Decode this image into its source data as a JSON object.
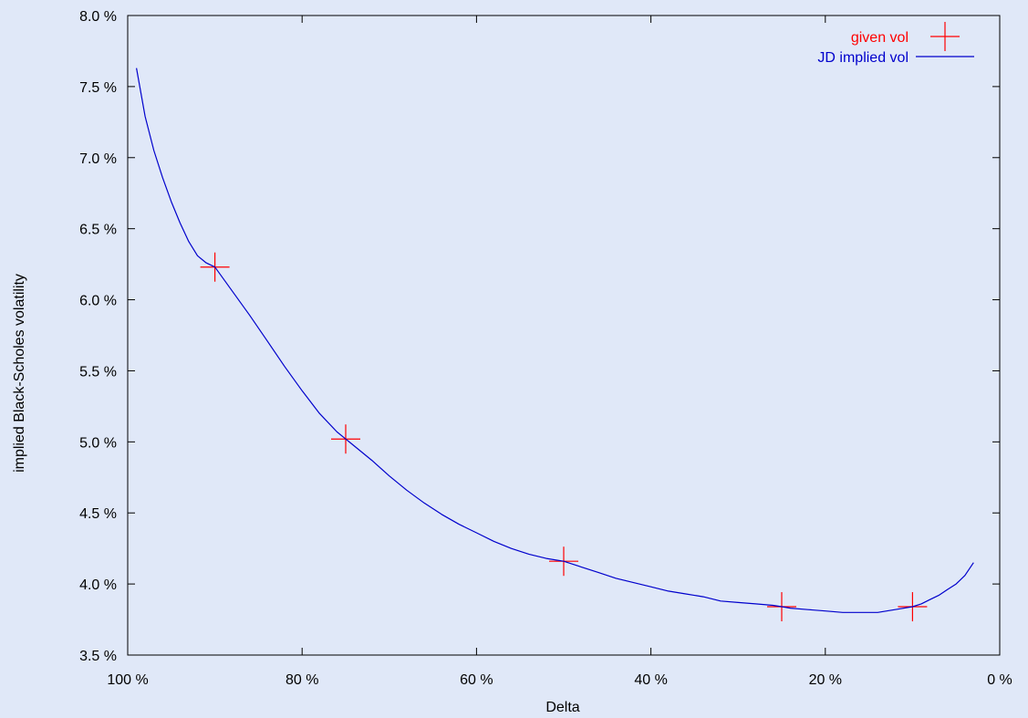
{
  "chart_data": {
    "type": "line",
    "xlabel": "Delta",
    "ylabel": "implied Black-Scholes volatility",
    "x_reversed": true,
    "xlim": [
      100,
      0
    ],
    "ylim": [
      3.5,
      8.0
    ],
    "x_ticks": [
      100,
      80,
      60,
      40,
      20,
      0
    ],
    "x_tick_labels": [
      "100 %",
      "80 %",
      "60 %",
      "40 %",
      "20 %",
      "0 %"
    ],
    "y_ticks": [
      3.5,
      4.0,
      4.5,
      5.0,
      5.5,
      6.0,
      6.5,
      7.0,
      7.5,
      8.0
    ],
    "y_tick_labels": [
      "3.5 %",
      "4.0 %",
      "4.5 %",
      "5.0 %",
      "5.5 %",
      "6.0 %",
      "6.5 %",
      "7.0 %",
      "7.5 %",
      "8.0 %"
    ],
    "grid": false,
    "legend_position": "top-right",
    "series": [
      {
        "name": "given vol",
        "style": "points",
        "marker": "plus",
        "color": "#ff0000",
        "x": [
          90,
          75,
          50,
          25,
          10
        ],
        "y": [
          6.23,
          5.02,
          4.16,
          3.84,
          3.84
        ]
      },
      {
        "name": "JD implied vol",
        "style": "line",
        "color": "#0000cc",
        "x": [
          99,
          98,
          97,
          96,
          95,
          94,
          93,
          92,
          91,
          90,
          88,
          86,
          84,
          82,
          80,
          78,
          76,
          75,
          74,
          72,
          70,
          68,
          66,
          64,
          62,
          60,
          58,
          56,
          54,
          52,
          50,
          48,
          46,
          44,
          42,
          40,
          38,
          36,
          34,
          32,
          30,
          28,
          26,
          25,
          24,
          22,
          20,
          18,
          16,
          14,
          12,
          10,
          9,
          8,
          7,
          6,
          5,
          4,
          3
        ],
        "y": [
          7.63,
          7.29,
          7.05,
          6.86,
          6.69,
          6.54,
          6.41,
          6.31,
          6.26,
          6.23,
          6.06,
          5.89,
          5.71,
          5.53,
          5.36,
          5.2,
          5.07,
          5.02,
          4.97,
          4.87,
          4.76,
          4.66,
          4.57,
          4.49,
          4.42,
          4.36,
          4.3,
          4.25,
          4.21,
          4.18,
          4.16,
          4.12,
          4.08,
          4.04,
          4.01,
          3.98,
          3.95,
          3.93,
          3.91,
          3.88,
          3.87,
          3.86,
          3.85,
          3.84,
          3.83,
          3.82,
          3.81,
          3.8,
          3.8,
          3.8,
          3.82,
          3.84,
          3.86,
          3.89,
          3.92,
          3.96,
          4.0,
          4.06,
          4.15
        ]
      }
    ]
  }
}
